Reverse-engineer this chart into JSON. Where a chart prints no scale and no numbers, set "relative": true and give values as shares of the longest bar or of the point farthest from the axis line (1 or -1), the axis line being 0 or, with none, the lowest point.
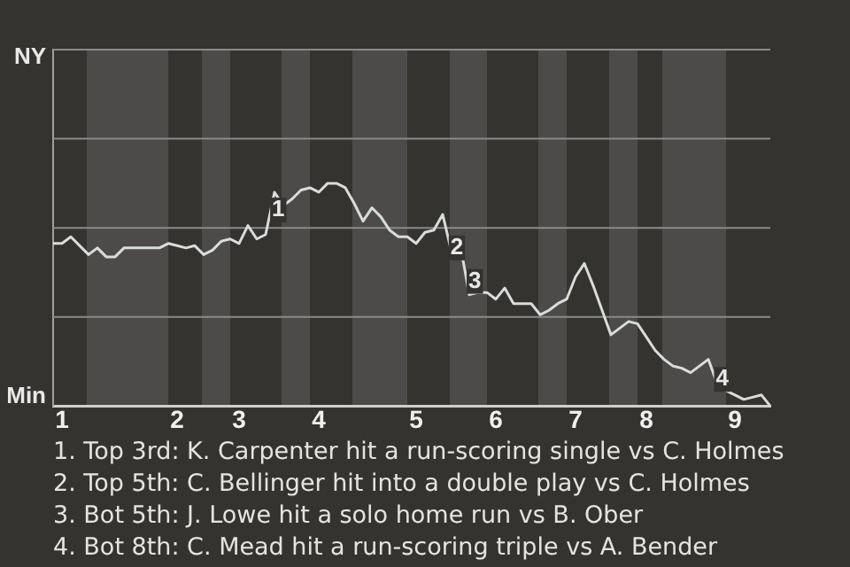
{
  "chart_data": {
    "type": "line",
    "relative": true,
    "ref_lines": [
      {
        "axis": "y",
        "value": 0.4,
        "color": "#8a8a8a"
      },
      {
        "axis": "y",
        "value": 0.8,
        "color": "#8a8a8a"
      },
      {
        "axis": "y",
        "value": 1.2,
        "color": "#8a8a8a"
      },
      {
        "axis": "y",
        "value": 1.6,
        "color": "#8a8a8a"
      }
    ],
    "categories": [
      null,
      "1",
      null,
      null,
      null,
      null,
      null,
      null,
      null,
      null,
      null,
      null,
      null,
      null,
      "2",
      null,
      null,
      null,
      null,
      null,
      null,
      "3",
      null,
      null,
      null,
      null,
      null,
      null,
      null,
      null,
      "4",
      null,
      null,
      null,
      null,
      null,
      null,
      null,
      null,
      null,
      null,
      "5",
      null,
      null,
      null,
      null,
      null,
      null,
      null,
      null,
      "6",
      null,
      null,
      null,
      null,
      null,
      null,
      null,
      null,
      "7",
      null,
      null,
      null,
      null,
      null,
      null,
      null,
      "8",
      null,
      null,
      null,
      null,
      null,
      null,
      null,
      null,
      null,
      "9",
      null,
      null,
      null,
      null
    ],
    "series": [
      {
        "color": "#d8dcdc",
        "values": [
          0.73,
          0.73,
          0.76,
          0.72,
          0.68,
          0.71,
          0.67,
          0.67,
          0.71,
          0.71,
          0.71,
          0.71,
          0.71,
          0.73,
          0.72,
          0.71,
          0.72,
          0.68,
          0.7,
          0.74,
          0.75,
          0.73,
          0.81,
          0.75,
          0.77,
          0.96,
          0.9,
          0.93,
          0.97,
          0.98,
          0.96,
          1,
          1,
          0.98,
          0.91,
          0.83,
          0.89,
          0.85,
          0.79,
          0.76,
          0.76,
          0.73,
          0.78,
          0.79,
          0.86,
          0.69,
          0.72,
          0.5,
          0.51,
          0.51,
          0.48,
          0.53,
          0.46,
          0.46,
          0.46,
          0.41,
          0.43,
          0.46,
          0.48,
          0.58,
          0.64,
          0.54,
          0.43,
          0.32,
          0.35,
          0.38,
          0.37,
          0.31,
          0.25,
          0.21,
          0.18,
          0.17,
          0.15,
          0.18,
          0.21,
          0.1,
          0.07,
          0.05,
          0.03,
          0.04,
          0.05,
          0
        ]
      }
    ],
    "annotations": [
      {
        "text": "1",
        "y": 0.88
      },
      {
        "text": "2",
        "y": 0.71
      },
      {
        "text": "3",
        "y": 0.56
      },
      {
        "text": "4",
        "y": 0.12
      },
      "NY",
      "Min",
      "1. Top 3rd: K. Carpenter hit a run-scoring single vs C. Holmes",
      "2. Top 5th: C. Bellinger hit into a double play vs C. Holmes",
      "3. Bot 5th: J. Lowe hit a solo home run vs B. Ober",
      "4. Bot 8th: C. Mead hit a run-scoring triple vs A. Bender"
    ]
  }
}
